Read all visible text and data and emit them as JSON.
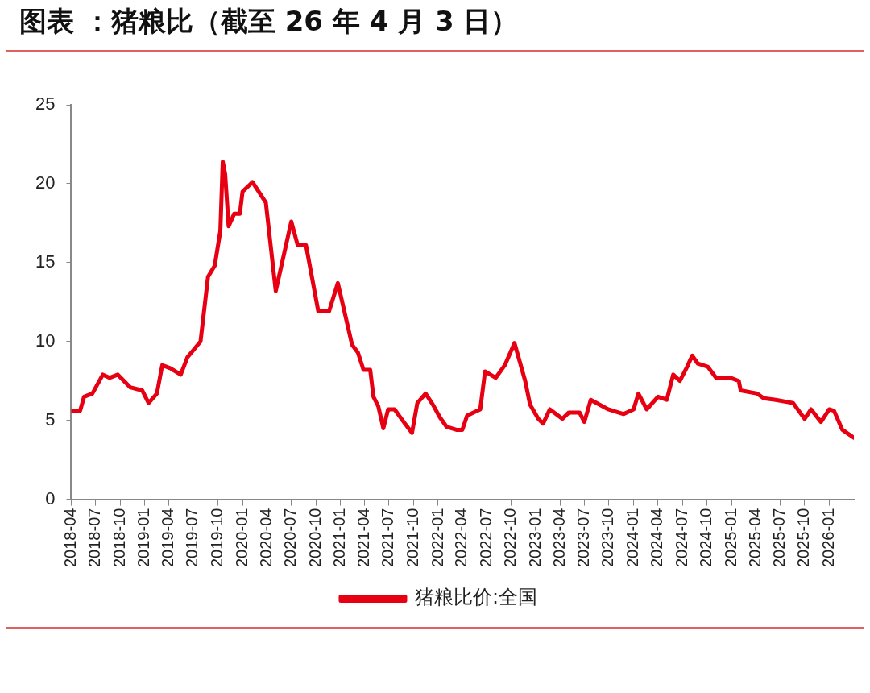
{
  "chart_data": {
    "type": "line",
    "title": "图表 ：猪粮比（截至 26 年 4 月 3 日）",
    "x": [
      "2018-04-01",
      "2018-05-04",
      "2018-05-19",
      "2018-06-19",
      "2018-07-28",
      "2018-08-22",
      "2018-09-22",
      "2018-11-07",
      "2018-12-22",
      "2019-01-15",
      "2019-02-15",
      "2019-03-07",
      "2019-04-07",
      "2019-05-15",
      "2019-06-09",
      "2019-07-28",
      "2019-08-25",
      "2019-09-19",
      "2019-10-10",
      "2019-10-19",
      "2019-10-28",
      "2019-11-10",
      "2019-12-01",
      "2019-12-22",
      "2020-01-01",
      "2020-02-07",
      "2020-03-01",
      "2020-03-28",
      "2020-05-04",
      "2020-07-01",
      "2020-07-25",
      "2020-08-25",
      "2020-10-10",
      "2020-11-19",
      "2020-12-22",
      "2021-02-13",
      "2021-03-07",
      "2021-03-28",
      "2021-04-22",
      "2021-05-04",
      "2021-05-22",
      "2021-06-10",
      "2021-06-28",
      "2021-07-22",
      "2021-08-25",
      "2021-09-25",
      "2021-10-15",
      "2021-11-15",
      "2021-12-12",
      "2022-01-07",
      "2022-02-01",
      "2022-03-10",
      "2022-04-01",
      "2022-04-19",
      "2022-06-07",
      "2022-06-25",
      "2022-08-04",
      "2022-09-07",
      "2022-09-25",
      "2022-10-13",
      "2022-11-22",
      "2022-12-10",
      "2023-01-10",
      "2023-01-28",
      "2023-02-22",
      "2023-04-10",
      "2023-05-04",
      "2023-06-13",
      "2023-07-01",
      "2023-07-25",
      "2023-09-28",
      "2023-11-25",
      "2024-01-01",
      "2024-01-19",
      "2024-02-19",
      "2024-04-01",
      "2024-05-04",
      "2024-05-28",
      "2024-06-22",
      "2024-07-19",
      "2024-08-07",
      "2024-08-28",
      "2024-10-04",
      "2024-11-04",
      "2024-12-28",
      "2025-01-28",
      "2025-02-04",
      "2025-04-07",
      "2025-05-01",
      "2025-06-15",
      "2025-08-19",
      "2025-10-01",
      "2025-10-25",
      "2025-12-01",
      "2026-01-01",
      "2026-01-19",
      "2026-02-19",
      "2026-04-03"
    ],
    "series": [
      {
        "name": "猪粮比价:全国",
        "color": "#e60012",
        "values": [
          5.6,
          5.6,
          6.5,
          6.7,
          7.9,
          7.7,
          7.9,
          7.1,
          6.9,
          6.1,
          6.7,
          8.5,
          8.3,
          7.9,
          9.0,
          10.0,
          14.1,
          14.8,
          17.0,
          21.4,
          20.6,
          17.3,
          18.1,
          18.1,
          19.5,
          20.1,
          19.5,
          18.8,
          13.2,
          17.6,
          16.1,
          16.1,
          11.9,
          11.9,
          13.7,
          9.8,
          9.3,
          8.2,
          8.2,
          6.5,
          5.9,
          4.5,
          5.7,
          5.7,
          4.9,
          4.2,
          6.1,
          6.7,
          6.0,
          5.2,
          4.6,
          4.4,
          4.4,
          5.3,
          5.7,
          8.1,
          7.7,
          8.5,
          9.2,
          9.9,
          7.5,
          6.0,
          5.1,
          4.8,
          5.7,
          5.1,
          5.5,
          5.5,
          4.9,
          6.3,
          5.7,
          5.4,
          5.7,
          6.7,
          5.7,
          6.5,
          6.3,
          7.9,
          7.5,
          8.4,
          9.1,
          8.6,
          8.4,
          7.7,
          7.7,
          7.5,
          6.9,
          6.7,
          6.4,
          6.3,
          6.1,
          5.1,
          5.7,
          4.9,
          5.7,
          5.6,
          4.4,
          3.9
        ]
      }
    ],
    "xlim": [
      "2018-04",
      "2026-04-03"
    ],
    "xticks": [
      "2018-04",
      "2018-07",
      "2018-10",
      "2019-01",
      "2019-04",
      "2019-07",
      "2019-10",
      "2020-01",
      "2020-04",
      "2020-07",
      "2020-10",
      "2021-01",
      "2021-04",
      "2021-07",
      "2021-10",
      "2022-01",
      "2022-04",
      "2022-07",
      "2022-10",
      "2023-01",
      "2023-04",
      "2023-07",
      "2023-10",
      "2024-01",
      "2024-04",
      "2024-07",
      "2024-10",
      "2025-01",
      "2025-04",
      "2025-07",
      "2025-10",
      "2026-01"
    ],
    "ylim": [
      0,
      25
    ],
    "yticks": [
      0,
      5,
      10,
      15,
      20,
      25
    ],
    "grid": false,
    "legend": "bottom",
    "marker": "none",
    "line_style": "solid"
  }
}
